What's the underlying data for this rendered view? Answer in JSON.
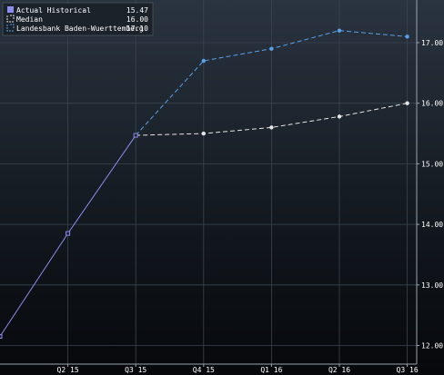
{
  "colors": {
    "background_top": "#2a3440",
    "background_bottom": "#06080b",
    "actual": "#8d8df0",
    "median": "#e6e6e6",
    "landesbank": "#5aa0e8",
    "grid": "#3a4550",
    "axis_text": "#ffffff"
  },
  "legend": {
    "items": [
      {
        "label": "Actual Historical",
        "value": "15.47",
        "color": "#8d8df0",
        "marker": "filled-square-icon"
      },
      {
        "label": "Median",
        "value": "16.00",
        "color": "#e6e6e6",
        "marker": "dashed-bracket-icon"
      },
      {
        "label": "Landesbank Baden-Wuerttemberg",
        "value": "17.10",
        "color": "#5aa0e8",
        "marker": "dashed-bracket-icon"
      }
    ]
  },
  "chart_data": {
    "type": "line",
    "categories": [
      "Q2 15",
      "Q3 15",
      "Q4 15",
      "Q1 16",
      "Q2 16",
      "Q3 16"
    ],
    "ylim": [
      11.95,
      17.6
    ],
    "yticks": [
      "12.00",
      "13.00",
      "14.00",
      "15.00",
      "16.00",
      "17.00"
    ],
    "grid": true,
    "legend_position": "top-left",
    "series": [
      {
        "name": "Actual Historical",
        "style": "solid",
        "marker": "square",
        "points": [
          [
            0,
            12.15
          ],
          [
            1,
            13.85
          ],
          [
            2,
            15.47
          ]
        ]
      },
      {
        "name": "Median",
        "style": "dashed",
        "marker": "dot",
        "points": [
          [
            2,
            15.47
          ],
          [
            3,
            15.5
          ],
          [
            4,
            15.6
          ],
          [
            5,
            15.78
          ],
          [
            6,
            16.0
          ]
        ]
      },
      {
        "name": "Landesbank Baden-Wuerttemberg",
        "style": "dashed",
        "marker": "dot",
        "points": [
          [
            2,
            15.47
          ],
          [
            3,
            16.7
          ],
          [
            4,
            16.9
          ],
          [
            5,
            17.2
          ],
          [
            6,
            17.1
          ]
        ]
      }
    ]
  }
}
